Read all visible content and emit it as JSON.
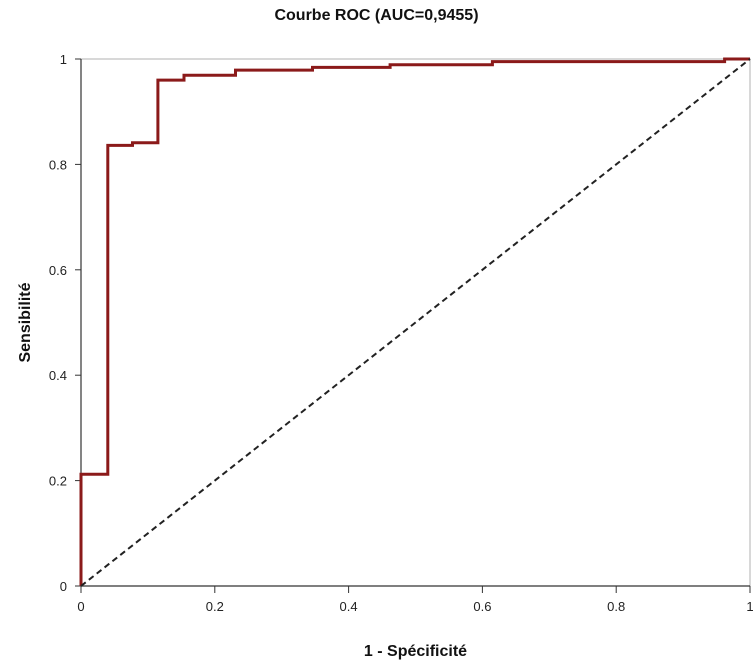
{
  "chart_data": {
    "type": "line",
    "title": "Courbe ROC (AUC=0,9455)",
    "xlabel": "1 - Spécificité",
    "ylabel": "Sensibilité",
    "xlim": [
      0,
      1
    ],
    "ylim": [
      0,
      1
    ],
    "x_ticks": [
      {
        "value": 0,
        "label": "0"
      },
      {
        "value": 0.2,
        "label": "0.2"
      },
      {
        "value": 0.4,
        "label": "0.4"
      },
      {
        "value": 0.6,
        "label": "0.6"
      },
      {
        "value": 0.8,
        "label": "0.8"
      },
      {
        "value": 1,
        "label": "1"
      }
    ],
    "y_ticks": [
      {
        "value": 0,
        "label": "0"
      },
      {
        "value": 0.2,
        "label": "0.2"
      },
      {
        "value": 0.4,
        "label": "0.4"
      },
      {
        "value": 0.6,
        "label": "0.6"
      },
      {
        "value": 0.8,
        "label": "0.8"
      },
      {
        "value": 1,
        "label": "1"
      }
    ],
    "grid": false,
    "series": [
      {
        "color": "#8b1a1a",
        "style": "step",
        "x": [
          0,
          0,
          0.04,
          0.04,
          0.077,
          0.077,
          0.115,
          0.115,
          0.154,
          0.154,
          0.231,
          0.231,
          0.346,
          0.346,
          0.462,
          0.462,
          0.615,
          0.615,
          0.962,
          0.962,
          1
        ],
        "y": [
          0,
          0.212,
          0.212,
          0.836,
          0.836,
          0.841,
          0.841,
          0.96,
          0.96,
          0.969,
          0.969,
          0.979,
          0.979,
          0.984,
          0.984,
          0.989,
          0.989,
          0.995,
          0.995,
          1,
          1
        ]
      },
      {
        "color": "#222222",
        "style": "dashed",
        "x": [
          0,
          1
        ],
        "y": [
          0,
          1
        ]
      }
    ]
  }
}
